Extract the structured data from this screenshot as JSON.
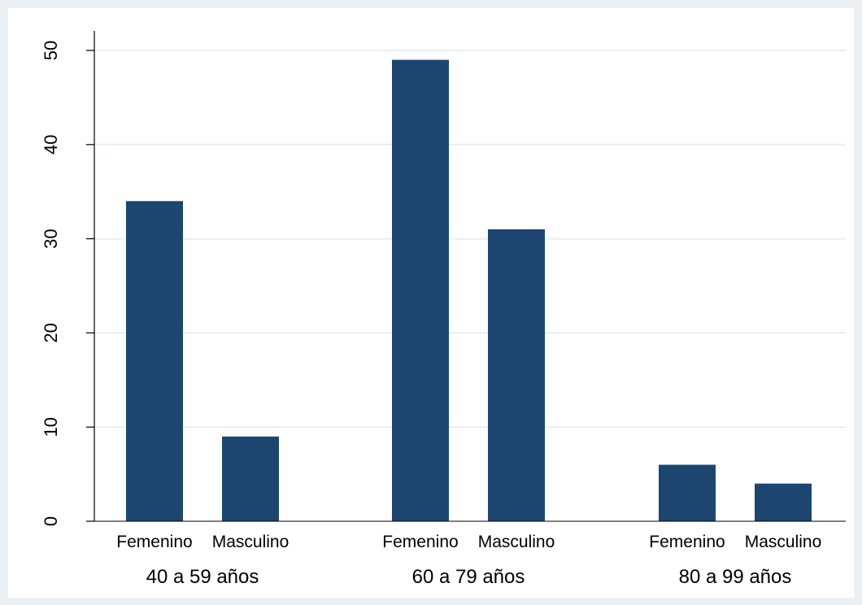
{
  "chart_data": {
    "type": "bar",
    "title": "",
    "xlabel": "",
    "ylabel": "",
    "ylim": [
      0,
      52
    ],
    "yticks": [
      0,
      10,
      20,
      30,
      40,
      50
    ],
    "grid": true,
    "groups": [
      {
        "label": "40 a 59 años",
        "categories": [
          "Femenino",
          "Masculino"
        ],
        "values": [
          34,
          9
        ]
      },
      {
        "label": "60 a 79 años",
        "categories": [
          "Femenino",
          "Masculino"
        ],
        "values": [
          49,
          31
        ]
      },
      {
        "label": "80 a 99 años",
        "categories": [
          "Femenino",
          "Masculino"
        ],
        "values": [
          6,
          4
        ]
      }
    ],
    "colors": {
      "bar": "#1c466f",
      "background": "#eaf0f3",
      "plot": "#ffffff",
      "grid": "#e8eef1",
      "axis": "#000000"
    }
  }
}
